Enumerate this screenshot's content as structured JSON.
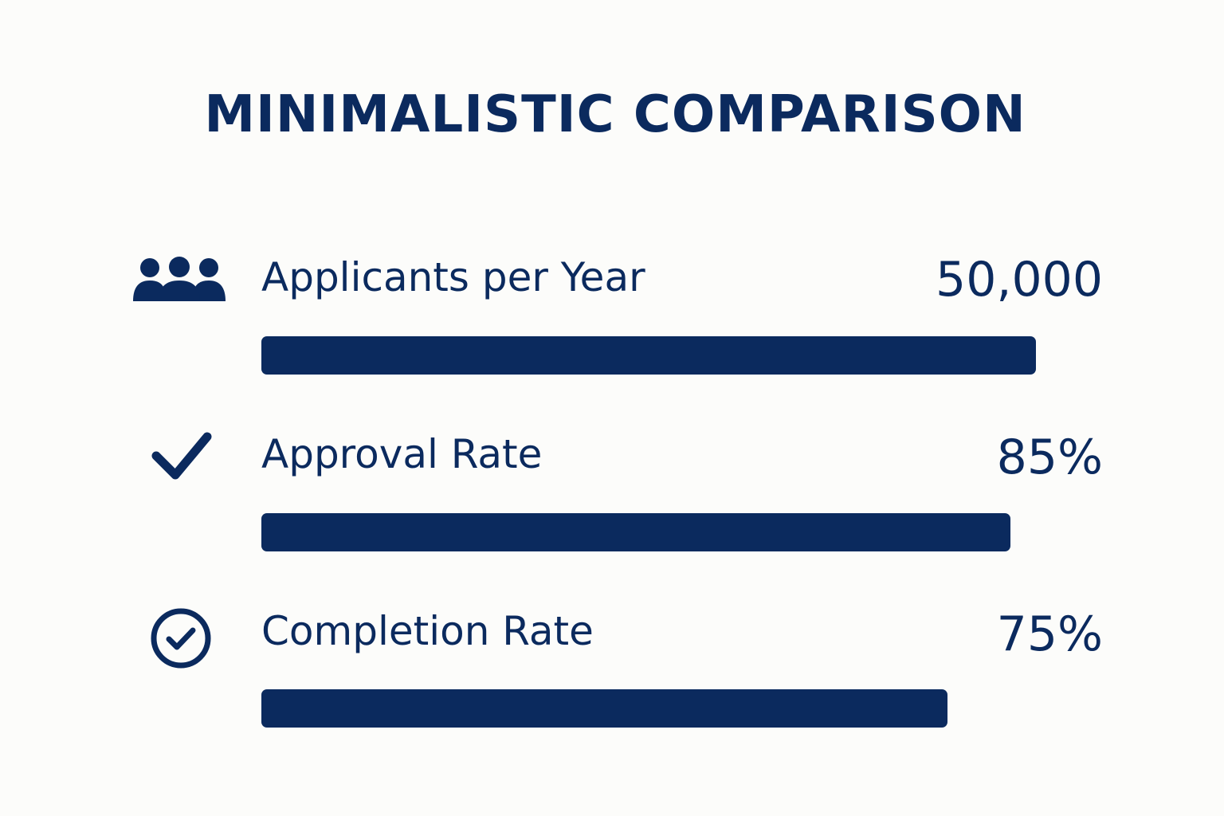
{
  "colors": {
    "background": "#fcfcfa",
    "accent": "#0b2a5e"
  },
  "chart_data": {
    "type": "bar",
    "orientation": "horizontal",
    "title": "MINIMALISTIC COMPARISON",
    "categories": [
      "Applicants per Year",
      "Approval Rate",
      "Completion Rate"
    ],
    "series": [
      {
        "values": [
          50000,
          85,
          75
        ],
        "labels": [
          "50,000",
          "85%",
          "75%"
        ]
      }
    ],
    "bar_fill_fraction": [
      0.92,
      0.89,
      0.815
    ],
    "icons": [
      "users-group-icon",
      "checkmark-icon",
      "check-circle-icon"
    ],
    "grid": false,
    "legend": "none"
  }
}
